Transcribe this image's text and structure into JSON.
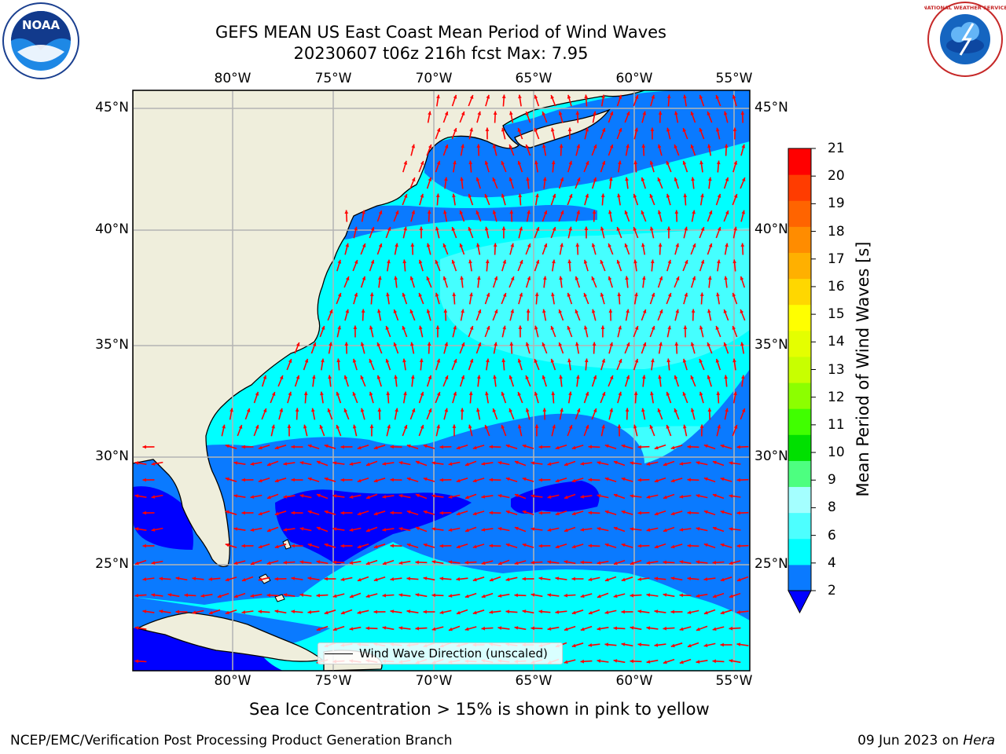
{
  "title_line1": "GEFS MEAN US East Coast Mean Period of Wind Waves",
  "title_line2": "20230607 t06z 216h fcst   Max: 7.95",
  "lon_ticks": [
    "80°W",
    "75°W",
    "70°W",
    "65°W",
    "60°W",
    "55°W"
  ],
  "lat_ticks": [
    "45°N",
    "40°N",
    "35°N",
    "30°N",
    "25°N"
  ],
  "legend_label": "Wind Wave Direction (unscaled)",
  "colorbar": {
    "label": "Mean Period of Wind Waves [s]",
    "ticks": [
      "21",
      "20",
      "19",
      "18",
      "17",
      "16",
      "15",
      "14",
      "13",
      "12",
      "11",
      "10",
      "9",
      "8",
      "6",
      "4",
      "2"
    ],
    "colors_bottom_to_top": [
      "#0a7aff",
      "#00ffff",
      "#4dffff",
      "#a4ffff",
      "#4dff80",
      "#00e000",
      "#40ff00",
      "#8cff00",
      "#c8ff00",
      "#e4ff00",
      "#ffff00",
      "#ffd700",
      "#ffb000",
      "#ff8c00",
      "#ff6400",
      "#ff3c00",
      "#ff0000"
    ],
    "under_color": "#0000ff"
  },
  "colors": {
    "land": "#efeedc",
    "band_2_4": "#0a7aff",
    "band_4_6": "#00ffff",
    "band_6_8": "#4dffff",
    "band_lt2": "#0000ff",
    "arrow": "#ff0000",
    "grid": "#b4b4b4"
  },
  "logos": {
    "noaa_text": "NOAA",
    "nws_text": "NATIONAL WEATHER SERVICE"
  },
  "sea_ice_note": "Sea Ice Concentration > 15% is shown in pink to yellow",
  "footer_left": "NCEP/EMC/Verification Post Processing Product Generation Branch",
  "footer_right_date": "09 Jun 2023 on ",
  "footer_right_host": "Hera"
}
